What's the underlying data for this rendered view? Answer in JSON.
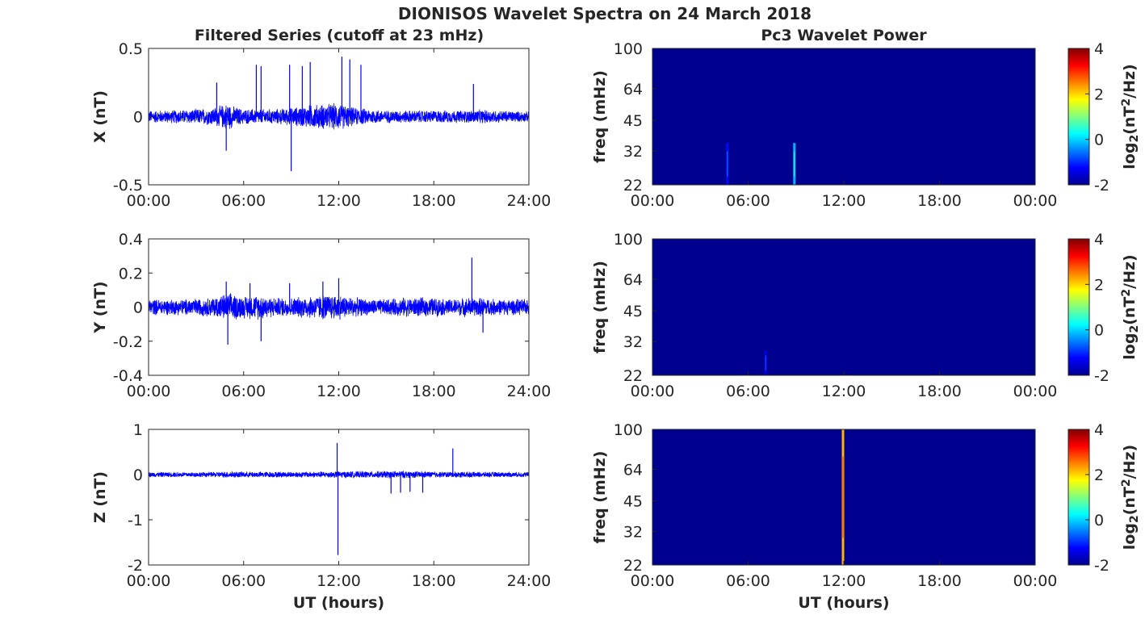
{
  "title": "DIONISOS Wavelet Spectra on 24 March 2018",
  "left_title": "Filtered Series (cutoff at 23 mHz)",
  "right_title": "Pc3 Wavelet Power",
  "x_axis_label": "UT (hours)",
  "colors": {
    "trace": "#0000ff",
    "background": "#00008f",
    "axes": "#262626"
  },
  "colormap": "jet",
  "chart_data": [
    {
      "type": "line",
      "name": "X",
      "ylabel": "X (nT)",
      "xlabel": "",
      "xlim": [
        0,
        24
      ],
      "xticks": [
        "00:00",
        "06:00",
        "12:00",
        "18:00",
        "24:00"
      ],
      "ylim": [
        -0.5,
        0.5
      ],
      "yticks": [
        "-0.5",
        "0",
        "0.5"
      ],
      "ytick_values": [
        -0.5,
        0,
        0.5
      ],
      "noise_envelope": {
        "x": [
          0,
          1,
          2,
          3,
          4,
          4.6,
          5,
          5.4,
          6,
          7,
          8,
          9,
          10,
          11,
          12,
          12.5,
          13,
          14,
          15,
          16,
          17,
          18,
          19,
          20,
          21,
          22,
          23,
          24
        ],
        "amp": [
          0.05,
          0.05,
          0.055,
          0.06,
          0.07,
          0.09,
          0.11,
          0.08,
          0.06,
          0.06,
          0.06,
          0.07,
          0.09,
          0.1,
          0.11,
          0.09,
          0.07,
          0.06,
          0.05,
          0.05,
          0.05,
          0.05,
          0.05,
          0.05,
          0.055,
          0.05,
          0.045,
          0.04
        ]
      },
      "spikes": [
        {
          "t": 4.3,
          "v": 0.25
        },
        {
          "t": 4.9,
          "v": -0.25
        },
        {
          "t": 6.8,
          "v": 0.38
        },
        {
          "t": 7.1,
          "v": 0.37
        },
        {
          "t": 8.9,
          "v": 0.38
        },
        {
          "t": 9.0,
          "v": -0.4
        },
        {
          "t": 9.7,
          "v": 0.37
        },
        {
          "t": 10.2,
          "v": 0.4
        },
        {
          "t": 12.2,
          "v": 0.44
        },
        {
          "t": 12.7,
          "v": 0.42
        },
        {
          "t": 13.4,
          "v": 0.38
        },
        {
          "t": 20.5,
          "v": 0.24
        }
      ]
    },
    {
      "type": "line",
      "name": "Y",
      "ylabel": "Y (nT)",
      "xlabel": "",
      "xlim": [
        0,
        24
      ],
      "xticks": [
        "00:00",
        "06:00",
        "12:00",
        "18:00",
        "24:00"
      ],
      "ylim": [
        -0.4,
        0.4
      ],
      "yticks": [
        "-0.4",
        "-0.2",
        "0",
        "0.2",
        "0.4"
      ],
      "ytick_values": [
        -0.4,
        -0.2,
        0,
        0.2,
        0.4
      ],
      "noise_envelope": {
        "x": [
          0,
          2,
          4,
          5,
          6,
          7,
          8,
          9,
          10,
          11,
          12,
          13,
          14,
          15,
          16,
          17,
          18,
          19,
          20,
          21,
          22,
          23,
          24
        ],
        "amp": [
          0.05,
          0.05,
          0.06,
          0.09,
          0.07,
          0.08,
          0.06,
          0.06,
          0.07,
          0.08,
          0.08,
          0.06,
          0.05,
          0.05,
          0.06,
          0.06,
          0.06,
          0.05,
          0.06,
          0.06,
          0.05,
          0.05,
          0.05
        ]
      },
      "spikes": [
        {
          "t": 4.9,
          "v": 0.15
        },
        {
          "t": 5.0,
          "v": -0.22
        },
        {
          "t": 6.4,
          "v": 0.14
        },
        {
          "t": 7.1,
          "v": -0.2
        },
        {
          "t": 8.9,
          "v": 0.14
        },
        {
          "t": 11.0,
          "v": 0.15
        },
        {
          "t": 12.0,
          "v": 0.17
        },
        {
          "t": 20.4,
          "v": 0.29
        },
        {
          "t": 21.1,
          "v": -0.15
        }
      ]
    },
    {
      "type": "line",
      "name": "Z",
      "ylabel": "Z (nT)",
      "xlabel": "UT (hours)",
      "xlim": [
        0,
        24
      ],
      "xticks": [
        "00:00",
        "06:00",
        "12:00",
        "18:00",
        "24:00"
      ],
      "ylim": [
        -2,
        1
      ],
      "yticks": [
        "-2",
        "-1",
        "0",
        "1"
      ],
      "ytick_values": [
        -2,
        -1,
        0,
        1
      ],
      "noise_envelope": {
        "x": [
          0,
          4,
          5,
          6,
          8,
          10,
          12,
          14,
          16,
          18,
          20,
          22,
          24
        ],
        "amp": [
          0.06,
          0.06,
          0.08,
          0.07,
          0.07,
          0.07,
          0.08,
          0.08,
          0.09,
          0.07,
          0.07,
          0.06,
          0.06
        ]
      },
      "spikes": [
        {
          "t": 11.9,
          "v": 0.7
        },
        {
          "t": 11.95,
          "v": -1.78
        },
        {
          "t": 15.3,
          "v": -0.42
        },
        {
          "t": 15.9,
          "v": -0.4
        },
        {
          "t": 16.5,
          "v": -0.38
        },
        {
          "t": 17.3,
          "v": -0.4
        },
        {
          "t": 19.2,
          "v": 0.58
        }
      ]
    },
    {
      "type": "heatmap",
      "name": "X power",
      "ylabel": "freq (mHz)",
      "xlabel": "",
      "xlim": [
        0,
        24
      ],
      "xticks": [
        "00:00",
        "06:00",
        "12:00",
        "18:00",
        "00:00"
      ],
      "ylim": [
        22,
        100
      ],
      "yscale": "log",
      "yticks": [
        "22",
        "32",
        "45",
        "64",
        "100"
      ],
      "ytick_values": [
        22,
        32,
        45,
        64,
        100
      ],
      "colorbar": {
        "label": "log2(nT2/Hz)",
        "label_base": "log",
        "label_sub": "2",
        "label_mid": "(nT",
        "label_sup": "2",
        "label_end": "/Hz)",
        "min": -2,
        "max": 4,
        "ticks": [
          "-2",
          "0",
          "2",
          "4"
        ],
        "tick_values": [
          -2,
          0,
          2,
          4
        ]
      },
      "events": [
        {
          "t": 4.7,
          "f_max": 35,
          "level": -1.2
        },
        {
          "t": 8.9,
          "f_max": 35,
          "level": -0.2
        }
      ]
    },
    {
      "type": "heatmap",
      "name": "Y power",
      "ylabel": "freq (mHz)",
      "xlabel": "",
      "xlim": [
        0,
        24
      ],
      "xticks": [
        "00:00",
        "06:00",
        "12:00",
        "18:00",
        "00:00"
      ],
      "ylim": [
        22,
        100
      ],
      "yscale": "log",
      "yticks": [
        "22",
        "32",
        "45",
        "64",
        "100"
      ],
      "ytick_values": [
        22,
        32,
        45,
        64,
        100
      ],
      "colorbar": {
        "label": "log2(nT2/Hz)",
        "label_base": "log",
        "label_sub": "2",
        "label_mid": "(nT",
        "label_sup": "2",
        "label_end": "/Hz)",
        "min": -2,
        "max": 4,
        "ticks": [
          "-2",
          "0",
          "2",
          "4"
        ],
        "tick_values": [
          -2,
          0,
          2,
          4
        ]
      },
      "events": [
        {
          "t": 7.1,
          "f_max": 29,
          "level": -1.4
        }
      ]
    },
    {
      "type": "heatmap",
      "name": "Z power",
      "ylabel": "freq (mHz)",
      "xlabel": "UT (hours)",
      "xlim": [
        0,
        24
      ],
      "xticks": [
        "00:00",
        "06:00",
        "12:00",
        "18:00",
        "00:00"
      ],
      "ylim": [
        22,
        100
      ],
      "yscale": "log",
      "yticks": [
        "22",
        "32",
        "45",
        "64",
        "100"
      ],
      "ytick_values": [
        22,
        32,
        45,
        64,
        100
      ],
      "colorbar": {
        "label": "log2(nT2/Hz)",
        "label_base": "log",
        "label_sub": "2",
        "label_mid": "(nT",
        "label_sup": "2",
        "label_end": "/Hz)",
        "min": -2,
        "max": 4,
        "ticks": [
          "-2",
          "0",
          "2",
          "4"
        ],
        "tick_values": [
          -2,
          0,
          2,
          4
        ]
      },
      "events": [
        {
          "t": 11.95,
          "f_max": 100,
          "level": 2.2
        }
      ]
    }
  ]
}
